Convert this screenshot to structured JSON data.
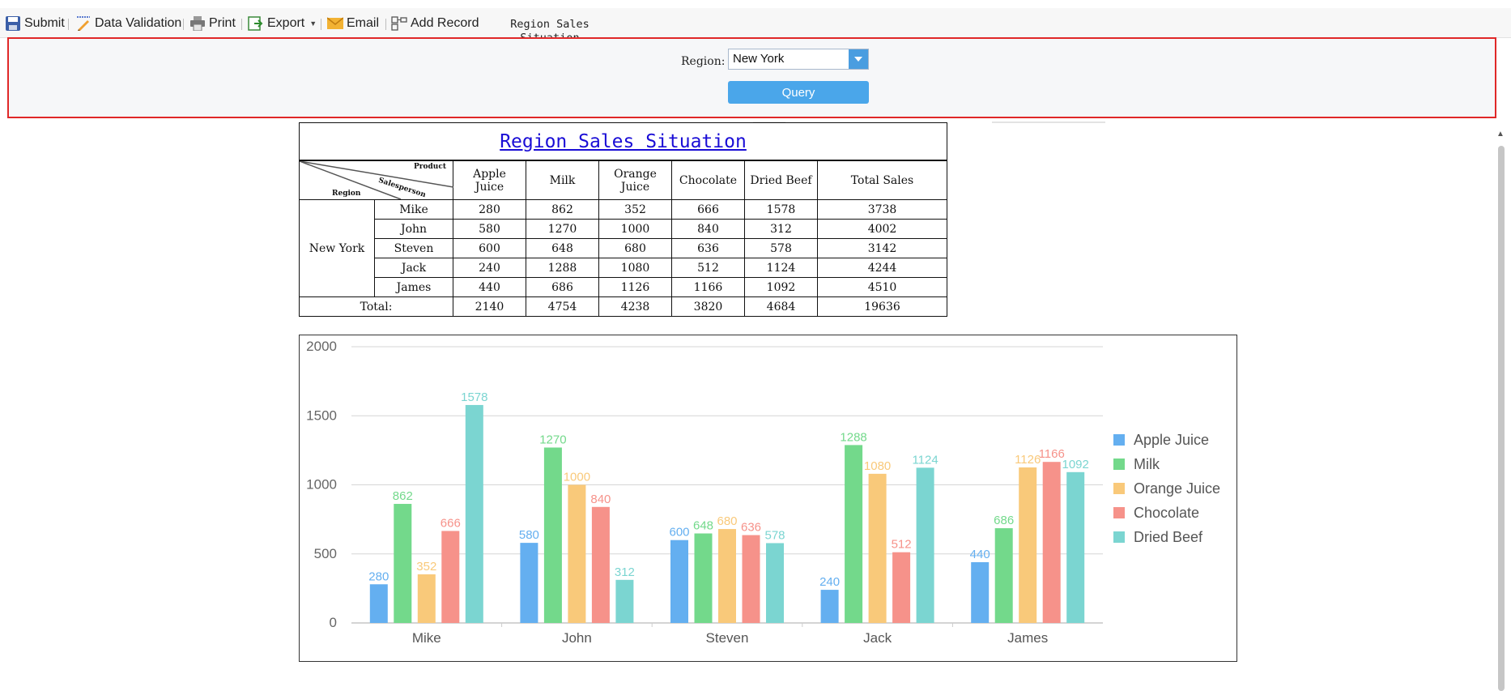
{
  "toolbar": {
    "submit_label": "Submit",
    "validation_label": "Data Validation",
    "print_label": "Print",
    "export_label": "Export",
    "email_label": "Email",
    "add_record_label": "Add Record",
    "report_title_line1": "Region Sales",
    "report_title_line2": "Situation"
  },
  "params": {
    "region_label": "Region:",
    "region_value": "New York",
    "query_label": "Query"
  },
  "report": {
    "title": "Region Sales Situation",
    "corner": {
      "product": "Product",
      "salesperson": "Salesperson",
      "region": "Region"
    },
    "headers": [
      [
        "Apple",
        "Juice"
      ],
      [
        "Milk"
      ],
      [
        "Orange",
        "Juice"
      ],
      [
        "Chocolate"
      ],
      [
        "Dried Beef"
      ],
      [
        "Total Sales"
      ]
    ],
    "region": "New York",
    "rows": [
      {
        "name": "Mike",
        "values": [
          "280",
          "862",
          "352",
          "666",
          "1578",
          "3738"
        ]
      },
      {
        "name": "John",
        "values": [
          "580",
          "1270",
          "1000",
          "840",
          "312",
          "4002"
        ]
      },
      {
        "name": "Steven",
        "values": [
          "600",
          "648",
          "680",
          "636",
          "578",
          "3142"
        ]
      },
      {
        "name": "Jack",
        "values": [
          "240",
          "1288",
          "1080",
          "512",
          "1124",
          "4244"
        ]
      },
      {
        "name": "James",
        "values": [
          "440",
          "686",
          "1126",
          "1166",
          "1092",
          "4510"
        ]
      }
    ],
    "total_label": "Total:",
    "totals": [
      "2140",
      "4754",
      "4238",
      "3820",
      "4684",
      "19636"
    ]
  },
  "chart_data": {
    "type": "bar",
    "categories": [
      "Mike",
      "John",
      "Steven",
      "Jack",
      "James"
    ],
    "series": [
      {
        "name": "Apple Juice",
        "color": "#64aff0",
        "values": [
          280,
          580,
          600,
          240,
          440
        ]
      },
      {
        "name": "Milk",
        "color": "#73d98b",
        "values": [
          862,
          1270,
          648,
          1288,
          686
        ]
      },
      {
        "name": "Orange Juice",
        "color": "#f9c97a",
        "values": [
          352,
          1000,
          680,
          1080,
          1126
        ]
      },
      {
        "name": "Chocolate",
        "color": "#f6928a",
        "values": [
          666,
          840,
          636,
          512,
          1166
        ]
      },
      {
        "name": "Dried Beef",
        "color": "#7bd5d1",
        "values": [
          1578,
          312,
          578,
          1124,
          1092
        ]
      }
    ],
    "yticks": [
      0,
      500,
      1000,
      1500,
      2000
    ],
    "ylim": [
      0,
      2000
    ],
    "grid": true,
    "legend": "right",
    "data_labels": true
  }
}
